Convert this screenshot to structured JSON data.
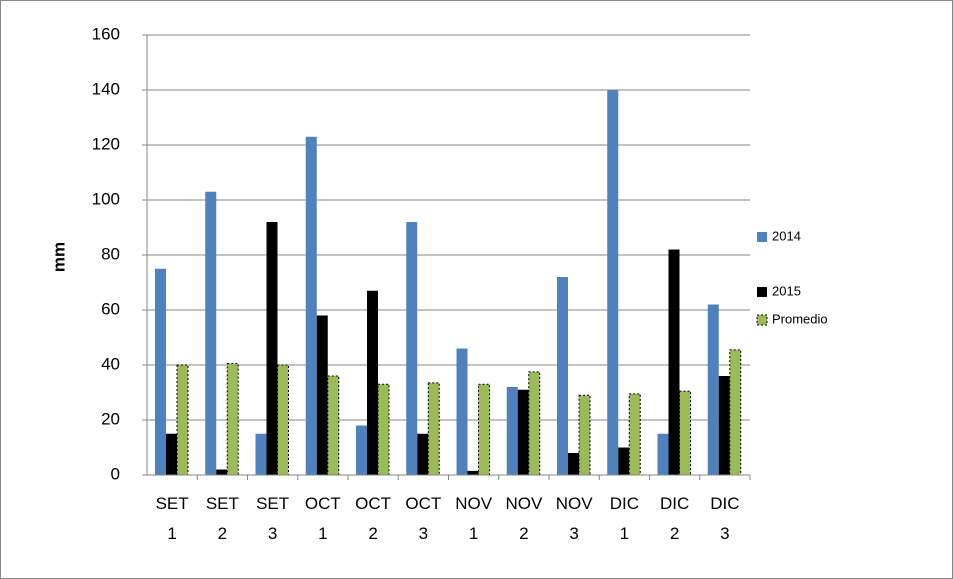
{
  "chart_data": {
    "type": "bar",
    "y_label": "mm",
    "categories": [
      "SET 1",
      "SET 2",
      "SET 3",
      "OCT 1",
      "OCT 2",
      "OCT 3",
      "NOV 1",
      "NOV 2",
      "NOV 3",
      "DIC 1",
      "DIC 2",
      "DIC 3"
    ],
    "series": [
      {
        "name": "2014",
        "color": "#4f81bd",
        "values": [
          75,
          103,
          15,
          123,
          18,
          92,
          46,
          32,
          72,
          140,
          15,
          62
        ]
      },
      {
        "name": "2015",
        "color": "#000000",
        "values": [
          15,
          2,
          92,
          58,
          67,
          15,
          1.5,
          31,
          8,
          10,
          82,
          36
        ]
      },
      {
        "name": "Promedio",
        "color": "#9bbb59",
        "values": [
          40,
          40.5,
          40,
          36,
          33,
          33.5,
          33,
          37.5,
          29,
          29.5,
          30.5,
          45.5
        ]
      }
    ],
    "ylim": [
      0,
      160
    ],
    "yticks": [
      0,
      20,
      40,
      60,
      80,
      100,
      120,
      140,
      160
    ],
    "grid": true,
    "legend": "right"
  }
}
